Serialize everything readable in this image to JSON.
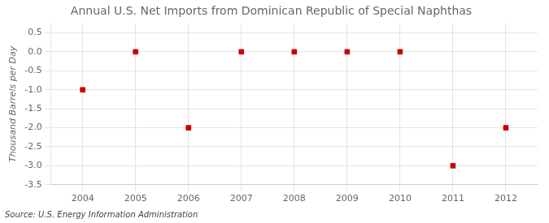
{
  "chart_data": {
    "type": "scatter",
    "title": "Annual U.S. Net Imports from Dominican Republic of Special Naphthas",
    "y_label": "Thousand Barrels per Day",
    "annotation": "Source: U.S. Energy Information Administration",
    "x": [
      2004,
      2005,
      2006,
      2007,
      2008,
      2009,
      2010,
      2011,
      2012
    ],
    "values": [
      -1.0,
      0.0,
      -2.0,
      0.0,
      0.0,
      0.0,
      0.0,
      -3.0,
      -2.0
    ],
    "color": "#CC0000",
    "marker": "square",
    "xlim": [
      2003.4,
      2012.6
    ],
    "ylim": [
      -3.5,
      0.75
    ],
    "xticks": [
      2004,
      2005,
      2006,
      2007,
      2008,
      2009,
      2010,
      2011,
      2012
    ],
    "yticks": [
      0.5,
      {
        "value": 0.0,
        "label": "0.0"
      },
      -0.5,
      {
        "value": -1.0,
        "label": "-1.0"
      },
      -1.5,
      {
        "value": -2.0,
        "label": "-2.0"
      },
      -2.5,
      {
        "value": -3.0,
        "label": "-3.0"
      },
      -3.5
    ],
    "grid": true
  }
}
